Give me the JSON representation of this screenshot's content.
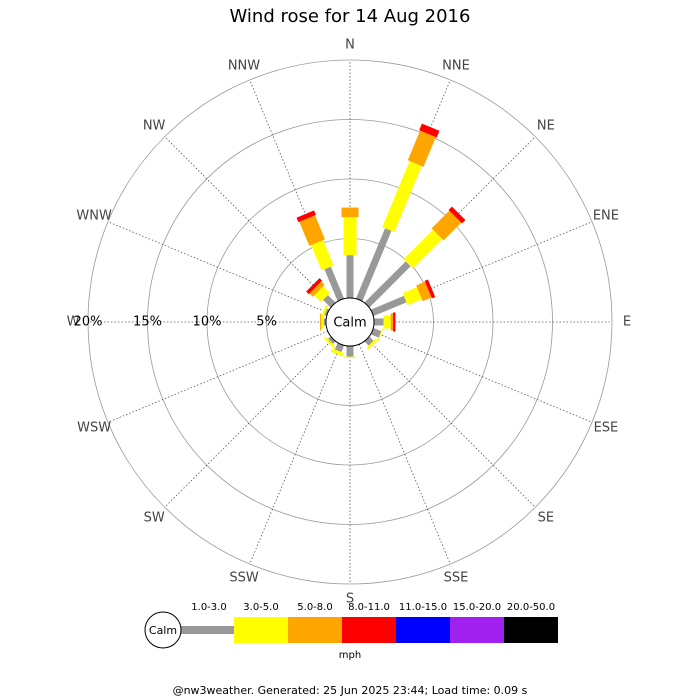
{
  "chart_data": {
    "type": "windrose",
    "title": "Wind rose for 14 Aug 2016",
    "categories": [
      "N",
      "NNE",
      "NE",
      "ENE",
      "E",
      "ESE",
      "SE",
      "SSE",
      "S",
      "SSW",
      "SW",
      "WSW",
      "W",
      "WNW",
      "NW",
      "NNW"
    ],
    "center_label": "Calm",
    "rlim": [
      0,
      20
    ],
    "rticks": [
      {
        "value": 5,
        "label": "5%"
      },
      {
        "value": 10,
        "label": "10%"
      },
      {
        "value": 15,
        "label": "15%"
      },
      {
        "value": 20,
        "label": "20%"
      }
    ],
    "grid": true,
    "legend_title": "mph",
    "series": [
      {
        "name": "1.0-3.0",
        "color": "#999999",
        "values": [
          3.6,
          6.4,
          4.9,
          3.0,
          0.8,
          0.7,
          0.5,
          0,
          0.9,
          0.6,
          0.3,
          0,
          0.2,
          0.2,
          0.9,
          2.9
        ]
      },
      {
        "name": "3.0-5.0",
        "color": "#ffff00",
        "values": [
          3.2,
          6.0,
          3.5,
          1.3,
          0.6,
          0.1,
          0.2,
          0,
          0.1,
          0.3,
          0.2,
          0,
          0.2,
          0.2,
          0.8,
          2.3
        ]
      },
      {
        "name": "5.0-8.0",
        "color": "#ffa500",
        "values": [
          0.8,
          2.7,
          2.1,
          0.8,
          0.2,
          0,
          0,
          0,
          0,
          0,
          0,
          0,
          0.1,
          0,
          0.4,
          2.2
        ]
      },
      {
        "name": "8.0-11.0",
        "color": "#ff0000",
        "values": [
          0,
          0.6,
          0.4,
          0.3,
          0.2,
          0,
          0,
          0,
          0,
          0,
          0,
          0,
          0,
          0,
          0.3,
          0.4
        ]
      },
      {
        "name": "11.0-15.0",
        "color": "#0000ff",
        "values": [
          0,
          0,
          0,
          0,
          0,
          0,
          0,
          0,
          0,
          0,
          0,
          0,
          0,
          0,
          0,
          0
        ]
      },
      {
        "name": "15.0-20.0",
        "color": "#a020f0",
        "values": [
          0,
          0,
          0,
          0,
          0,
          0,
          0,
          0,
          0,
          0,
          0,
          0,
          0,
          0,
          0,
          0
        ]
      },
      {
        "name": "20.0-50.0",
        "color": "#000000",
        "values": [
          0,
          0,
          0,
          0,
          0,
          0,
          0,
          0,
          0,
          0,
          0,
          0,
          0,
          0,
          0,
          0
        ]
      }
    ],
    "footer": "@nw3weather. Generated: 25 Jun 2025 23:44; Load time: 0.09 s"
  }
}
